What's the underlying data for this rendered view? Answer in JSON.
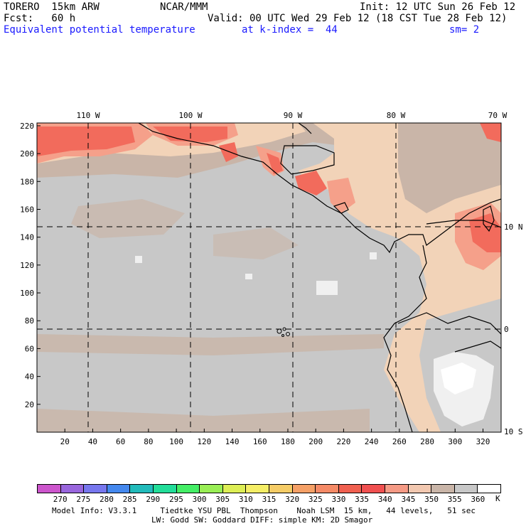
{
  "header": {
    "model": "TORERO  15km ARW",
    "center": "NCAR/MMM",
    "init": "Init: 12 UTC Sun 26 Feb 12",
    "fcst": "Fcst:   60 h",
    "valid": "Valid: 00 UTC Wed 29 Feb 12 (18 CST Tue 28 Feb 12)",
    "field": "Equivalent potential temperature",
    "level": "at k-index =  44",
    "smoothing": "sm= 2"
  },
  "map": {
    "x_ticks": [
      "20",
      "40",
      "60",
      "80",
      "100",
      "120",
      "140",
      "160",
      "180",
      "200",
      "220",
      "240",
      "260",
      "280",
      "300",
      "320"
    ],
    "y_ticks": [
      "20",
      "40",
      "60",
      "80",
      "100",
      "120",
      "140",
      "160",
      "180",
      "200",
      "220"
    ],
    "lon_labels": [
      "110 W",
      "100 W",
      "90 W",
      "80 W",
      "70 W"
    ],
    "lat_labels": [
      "10 N",
      "0",
      "10 S"
    ],
    "colors": {
      "background_gray": "#c8c8c8",
      "light_tan": "#f2d3b8",
      "tan": "#c9b5a8",
      "salmon": "#f5a08a",
      "red": "#f26b5c",
      "white": "#f5f5f5"
    }
  },
  "colorbar": {
    "labels": [
      "270",
      "275",
      "280",
      "285",
      "290",
      "295",
      "300",
      "305",
      "310",
      "315",
      "320",
      "325",
      "330",
      "335",
      "340",
      "345",
      "350",
      "355",
      "360"
    ],
    "unit": "K",
    "colors": [
      "#cc55cc",
      "#9966dd",
      "#7777ee",
      "#4488ee",
      "#22bbbb",
      "#22dd99",
      "#44ee66",
      "#99ee55",
      "#ddee55",
      "#f5ee66",
      "#f5cc66",
      "#f5a066",
      "#f58a66",
      "#f06050",
      "#f05050",
      "#f59a85",
      "#f2c8b0",
      "#c9b5a8",
      "#c8c8c8",
      "#ffffff"
    ]
  },
  "footer": {
    "line1": "Model Info: V3.3.1     Tiedtke YSU PBL  Thompson    Noah LSM  15 km,   44 levels,   51 sec",
    "line2": "LW: Godd SW: Goddard DIFF: simple KM: 2D Smagor"
  }
}
